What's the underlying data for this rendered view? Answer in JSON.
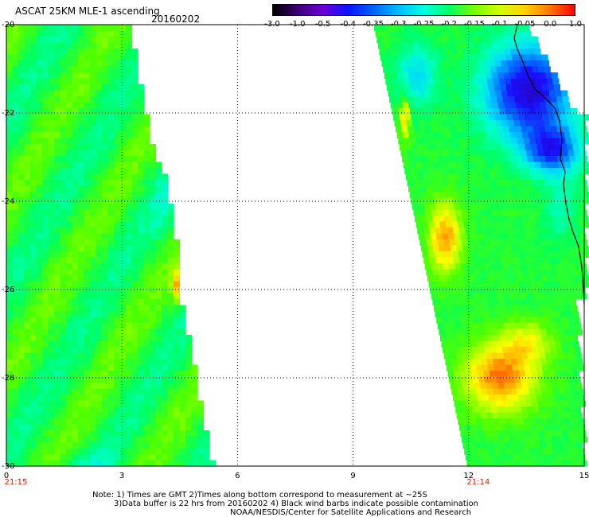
{
  "header": {
    "title": "ASCAT 25KM MLE-1 ascending",
    "date": "20160202"
  },
  "colorbar": {
    "labels": [
      "-3.0",
      "-1.0",
      "-0.5",
      "-0.4",
      "-0.35",
      "-0.3",
      "-0.25",
      "-0.2",
      "-0.15",
      "-0.1",
      "-0.05",
      "0.0",
      "1.0"
    ],
    "colors": [
      "#000000",
      "#3c0078",
      "#6a00d8",
      "#0a14ff",
      "#0064ff",
      "#00beff",
      "#00ffe0",
      "#00ff64",
      "#78ff00",
      "#d2ff00",
      "#ffd200",
      "#ff7800",
      "#ff0000"
    ]
  },
  "map": {
    "x_ticks": [
      "0",
      "3",
      "6",
      "9",
      "12",
      "15"
    ],
    "y_ticks": [
      "-20",
      "-22",
      "-24",
      "-26",
      "-28",
      "-30"
    ],
    "lon_range": [
      0,
      15
    ],
    "lat_range": [
      -30,
      -20
    ],
    "swath_times": [
      {
        "label": "21:15",
        "lon": 0
      },
      {
        "label": "21:14",
        "lon": 12
      }
    ],
    "time_color": "#cc2200",
    "coastline_color": "#000000"
  },
  "notes": {
    "line1": "Note: 1) Times are GMT 2)Times along bottom correspond to measurement at ~25S",
    "line2": "3)Data buffer is 22 hrs from 20160202 4) Black wind barbs indicate possible contamination",
    "line3": "NOAA/NESDIS/Center for Satellite Applications and Research"
  }
}
